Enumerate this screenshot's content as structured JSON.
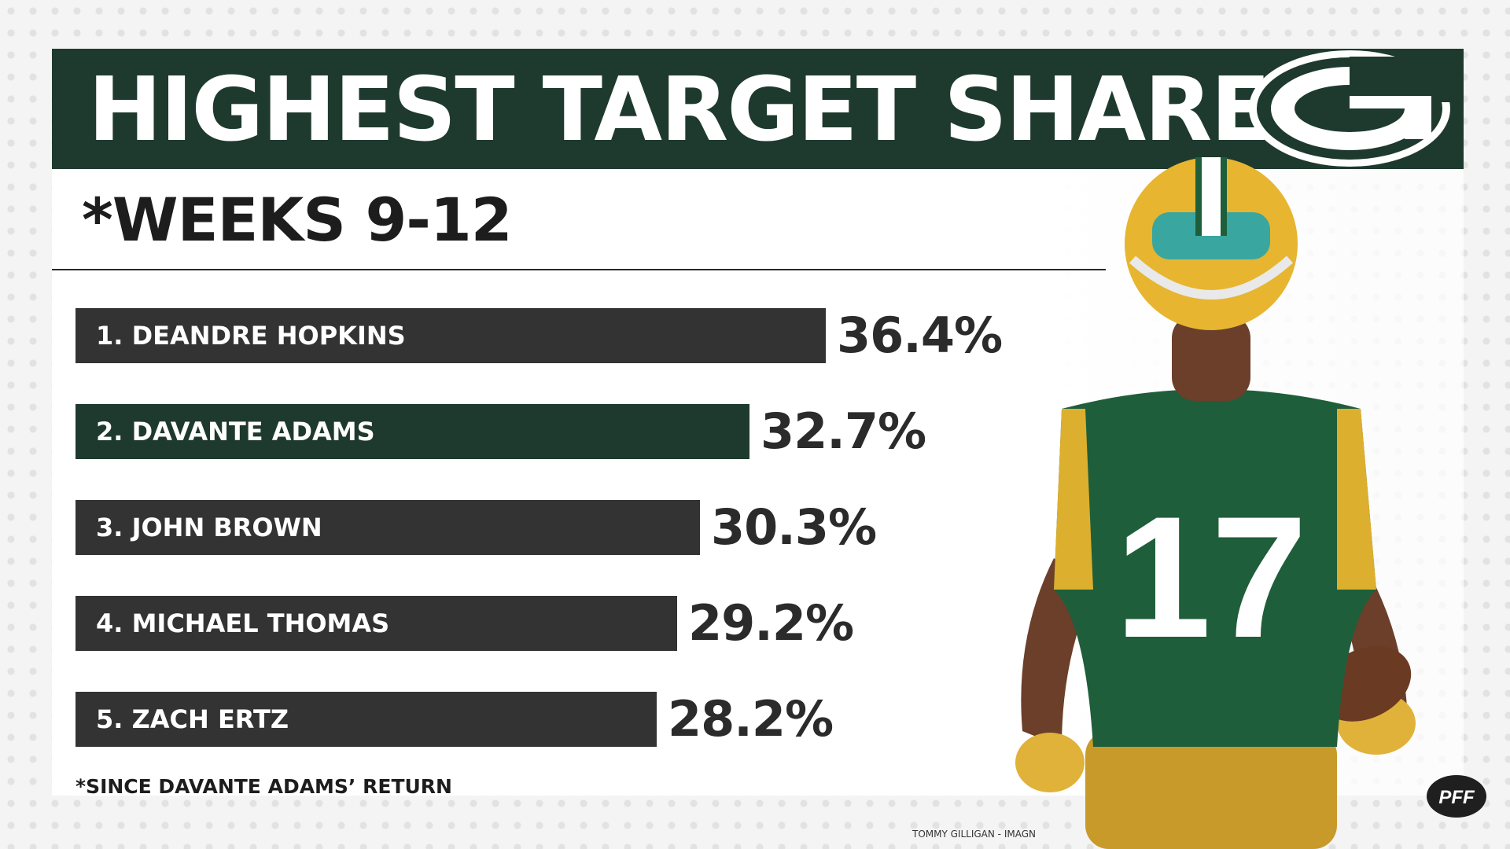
{
  "header": {
    "title": "HIGHEST TARGET SHARE",
    "subtitle": "*WEEKS 9-12"
  },
  "chart_data": {
    "type": "bar",
    "orientation": "horizontal",
    "categories": [
      "1. DEANDRE HOPKINS",
      "2. DAVANTE ADAMS",
      "3. JOHN BROWN",
      "4. MICHAEL THOMAS",
      "5. ZACH ERTZ"
    ],
    "values": [
      36.4,
      32.7,
      30.3,
      29.2,
      28.2
    ],
    "value_labels": [
      "36.4%",
      "32.7%",
      "30.3%",
      "29.2%",
      "28.2%"
    ],
    "bar_colors": [
      "#333333",
      "#1e3a2e",
      "#333333",
      "#333333",
      "#333333"
    ],
    "grid": false,
    "legend": "none"
  },
  "footnote": "*SINCE DAVANTE ADAMS’ RETURN",
  "credit": "TOMMY GILLIGAN - IMAGN",
  "logos": {
    "team": "green-bay-g-logo-icon",
    "brand": "pff-logo-icon",
    "brand_text": "PFF"
  },
  "player_photo": {
    "jersey_number": "17"
  },
  "colors": {
    "team_green": "#1e3a2e",
    "team_gold": "#f1b82d",
    "bar_dark": "#333333",
    "text_dark": "#2b2b2b"
  }
}
